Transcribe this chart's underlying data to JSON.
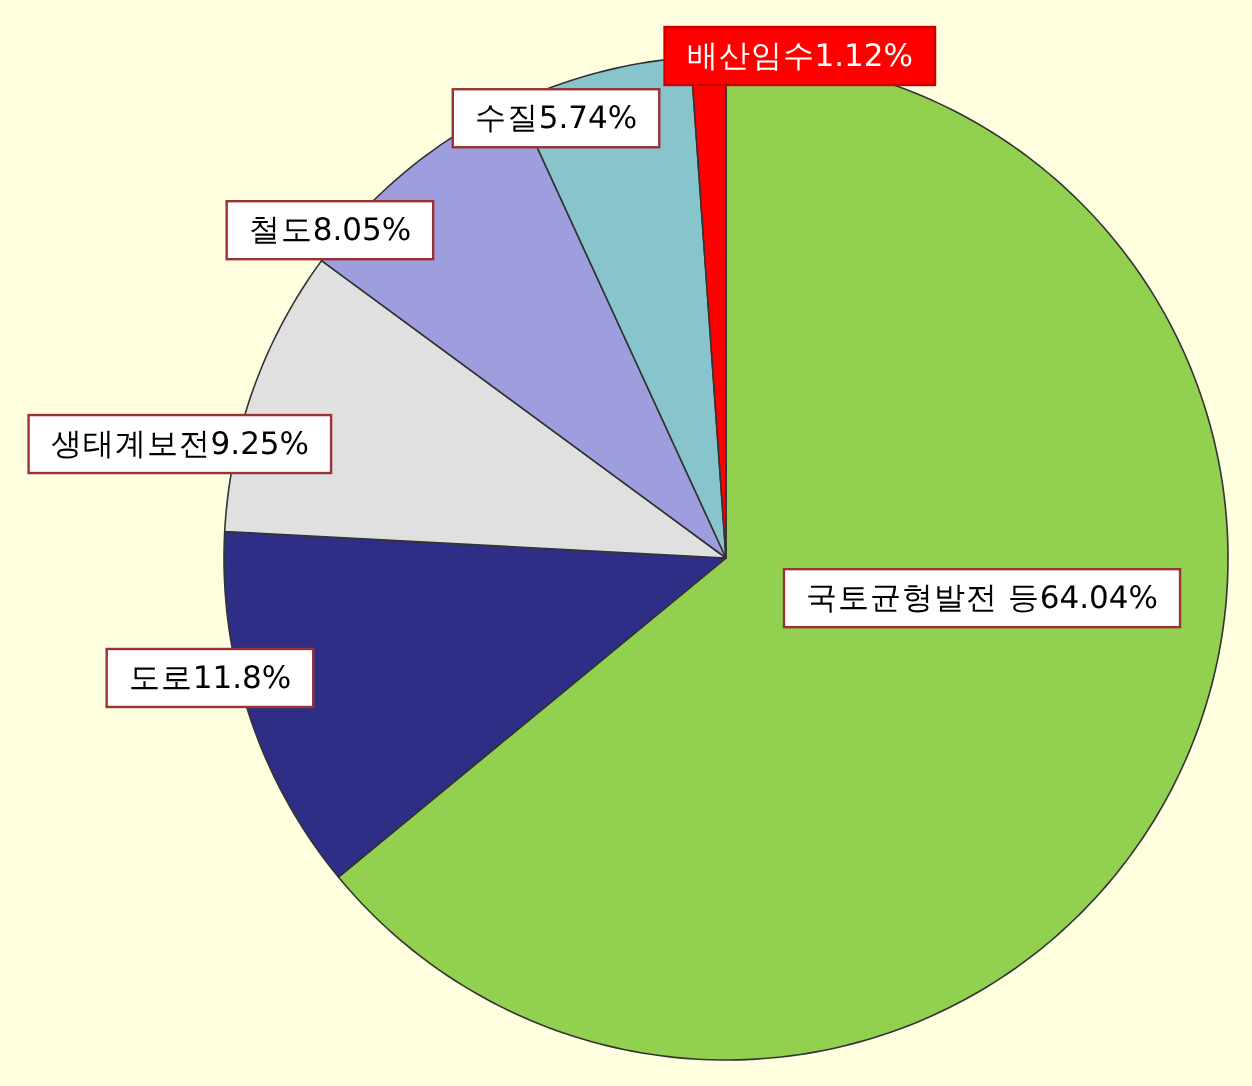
{
  "chart_data": {
    "type": "pie",
    "categories": [
      "국토균형발전 등",
      "도로",
      "생태계보전",
      "철도",
      "수질",
      "배산임수"
    ],
    "values": [
      64.04,
      11.8,
      9.25,
      8.05,
      5.74,
      1.12
    ],
    "colors": [
      "#92d050",
      "#2e2e86",
      "#e0e0e0",
      "#9e9ede",
      "#88c4cc",
      "#ff0000"
    ],
    "value_labels": [
      "64.04%",
      "11.8%",
      "9.25%",
      "8.05%",
      "5.74%",
      "1.12%"
    ]
  }
}
